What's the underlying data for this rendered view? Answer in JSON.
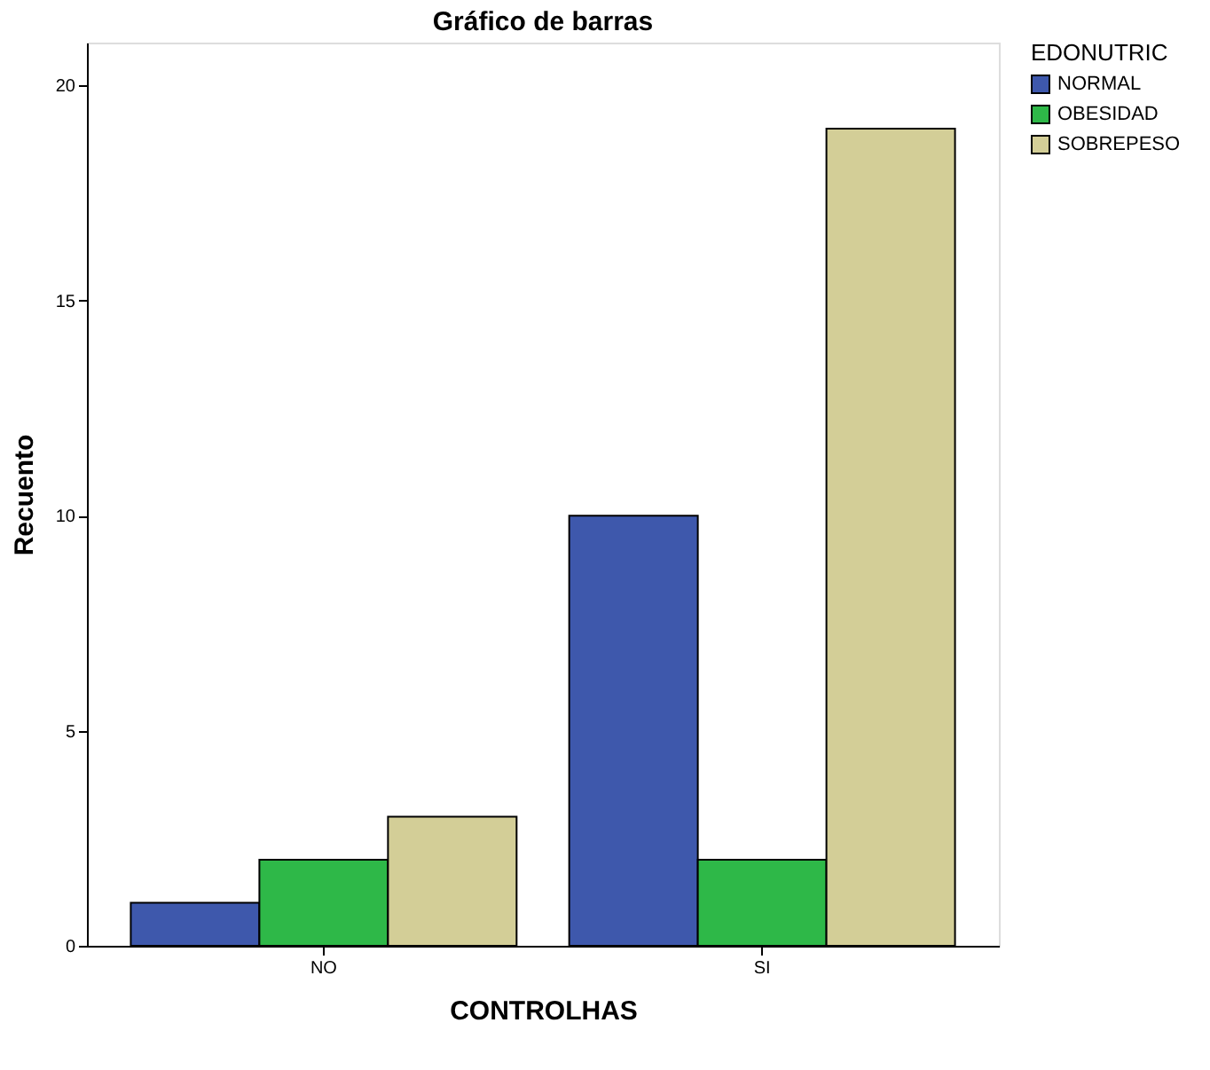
{
  "chart_data": {
    "type": "bar",
    "title": "Gráfico de barras",
    "xlabel": "CONTROLHAS",
    "ylabel": "Recuento",
    "legend_title": "EDONUTRIC",
    "categories": [
      "NO",
      "SI"
    ],
    "series": [
      {
        "name": "NORMAL",
        "color": "#3e58ac",
        "values": [
          1,
          10
        ]
      },
      {
        "name": "OBESIDAD",
        "color": "#2eb848",
        "values": [
          2,
          2
        ]
      },
      {
        "name": "SOBREPESO",
        "color": "#d3ce97",
        "values": [
          3,
          19
        ]
      }
    ],
    "ylim": [
      0,
      21
    ],
    "yticks": [
      0,
      5,
      10,
      15,
      20
    ],
    "grid": false,
    "legend": "right"
  }
}
